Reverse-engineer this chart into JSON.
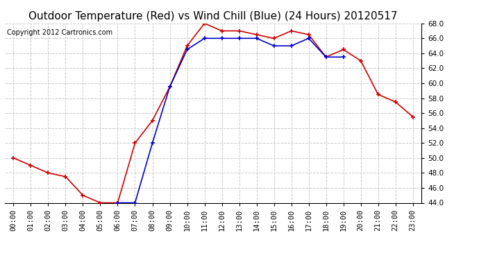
{
  "title": "Outdoor Temperature (Red) vs Wind Chill (Blue) (24 Hours) 20120517",
  "copyright": "Copyright 2012 Cartronics.com",
  "x_labels": [
    "00:00",
    "01:00",
    "02:00",
    "03:00",
    "04:00",
    "05:00",
    "06:00",
    "07:00",
    "08:00",
    "09:00",
    "10:00",
    "11:00",
    "12:00",
    "13:00",
    "14:00",
    "15:00",
    "16:00",
    "17:00",
    "18:00",
    "19:00",
    "20:00",
    "21:00",
    "22:00",
    "23:00"
  ],
  "red_temps": [
    50.0,
    49.0,
    48.0,
    47.5,
    45.0,
    44.0,
    44.0,
    52.0,
    55.0,
    59.5,
    65.0,
    68.0,
    67.0,
    67.0,
    66.5,
    66.0,
    67.0,
    66.5,
    63.5,
    64.5,
    63.0,
    58.5,
    57.5,
    55.5
  ],
  "blue_temps": [
    null,
    null,
    null,
    null,
    null,
    null,
    44.0,
    44.0,
    52.0,
    59.5,
    64.5,
    66.0,
    66.0,
    66.0,
    66.0,
    65.0,
    65.0,
    66.0,
    63.5,
    63.5,
    null,
    null,
    null,
    null
  ],
  "ylim_min": 44.0,
  "ylim_max": 68.0,
  "yticks": [
    44.0,
    46.0,
    48.0,
    50.0,
    52.0,
    54.0,
    56.0,
    58.0,
    60.0,
    62.0,
    64.0,
    66.0,
    68.0
  ],
  "red_color": "#cc0000",
  "blue_color": "#0000cc",
  "bg_color": "#ffffff",
  "grid_color": "#c8c8c8",
  "title_fontsize": 11,
  "copyright_fontsize": 7,
  "tick_fontsize": 7.5
}
